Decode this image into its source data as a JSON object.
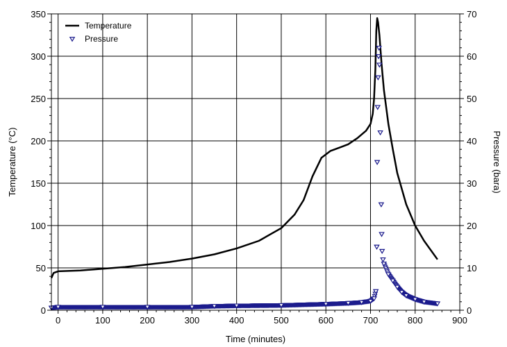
{
  "chart_data": {
    "type": "line",
    "title": "",
    "xlabel": "Time (minutes)",
    "ylabel": "Temperature (°C)",
    "y2label": "Pressure (bara)",
    "xlim": [
      -15,
      900
    ],
    "ylim": [
      0,
      350
    ],
    "y2lim": [
      0,
      70
    ],
    "grid": true,
    "legend_position": "top-left",
    "x_ticks": [
      "0",
      "100",
      "200",
      "300",
      "400",
      "500",
      "600",
      "700",
      "800",
      "900"
    ],
    "y_ticks": [
      "0",
      "50",
      "100",
      "150",
      "200",
      "250",
      "300",
      "350"
    ],
    "y2_ticks": [
      "0",
      "10",
      "20",
      "30",
      "40",
      "50",
      "60",
      "70"
    ],
    "legend": [
      "Temperature",
      "Pressure"
    ],
    "series": [
      {
        "name": "Temperature",
        "axis": "left",
        "color": "#000000",
        "style": "line",
        "x": [
          -15,
          -10,
          0,
          50,
          100,
          150,
          200,
          250,
          300,
          350,
          400,
          450,
          500,
          530,
          550,
          570,
          590,
          610,
          630,
          650,
          670,
          690,
          700,
          705,
          708,
          711,
          713,
          715,
          717,
          720,
          725,
          730,
          740,
          750,
          760,
          780,
          800,
          820,
          850
        ],
        "y": [
          38,
          44,
          46,
          47,
          49,
          51,
          54,
          57,
          61,
          66,
          73,
          82,
          97,
          113,
          130,
          158,
          180,
          188,
          192,
          196,
          203,
          212,
          220,
          232,
          250,
          285,
          330,
          345,
          340,
          325,
          290,
          260,
          220,
          190,
          162,
          125,
          100,
          82,
          60
        ]
      },
      {
        "name": "Pressure",
        "axis": "right",
        "color": "#1a1a8c",
        "style": "markers",
        "x": [
          -15,
          0,
          100,
          200,
          300,
          350,
          400,
          500,
          600,
          650,
          680,
          700,
          708,
          712,
          714,
          715,
          716,
          717,
          718,
          719,
          720,
          722,
          724,
          725,
          726,
          728,
          730,
          740,
          750,
          760,
          770,
          780,
          800,
          820,
          850
        ],
        "y": [
          0.6,
          0.8,
          0.8,
          0.8,
          0.8,
          1.0,
          1.1,
          1.2,
          1.5,
          1.7,
          1.9,
          2.2,
          2.8,
          4.5,
          15,
          35,
          48,
          55,
          60,
          62,
          58,
          42,
          25,
          18,
          14,
          12,
          11,
          8.5,
          7,
          5.5,
          4.3,
          3.5,
          2.6,
          2.0,
          1.6
        ]
      }
    ]
  }
}
